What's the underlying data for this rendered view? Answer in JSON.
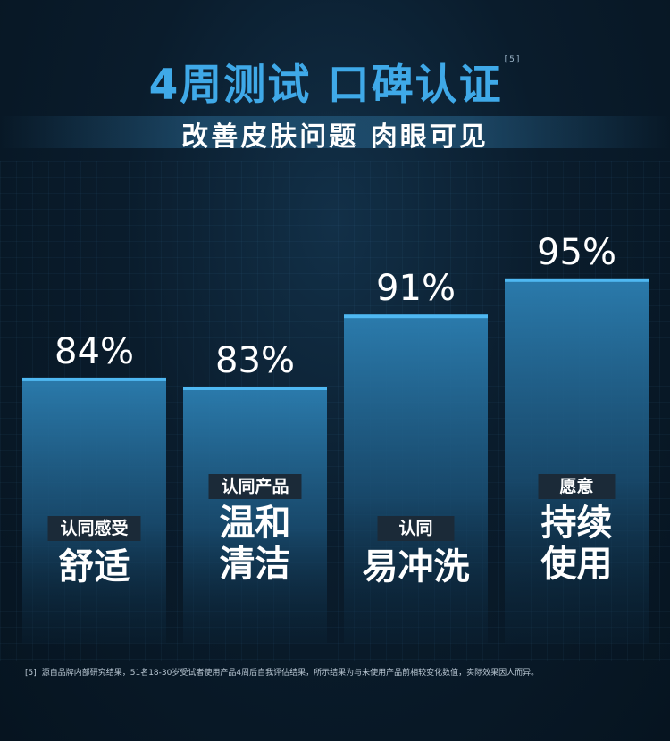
{
  "header": {
    "title": "4周测试 口碑认证",
    "title_ref": "[5]",
    "subtitle": "改善皮肤问题 肉眼可见"
  },
  "colors": {
    "accent": "#3fa9e8",
    "bar_top": "#2c7fb2",
    "bar_bottom": "#0d2a40",
    "bar_line": "#4fb8f2",
    "tag_bg": "#1b2a38"
  },
  "chart_data": {
    "type": "bar",
    "unit": "%",
    "ylim": [
      0,
      100
    ],
    "categories": [
      "舒适",
      "温和清洁",
      "易冲洗",
      "持续使用"
    ],
    "bars": [
      {
        "value": 84,
        "value_label": "84%",
        "tag": "认同感受",
        "lines": [
          "舒适"
        ]
      },
      {
        "value": 83,
        "value_label": "83%",
        "tag": "认同产品",
        "lines": [
          "温和",
          "清洁"
        ]
      },
      {
        "value": 91,
        "value_label": "91%",
        "tag": "认同",
        "lines": [
          "易冲洗"
        ]
      },
      {
        "value": 95,
        "value_label": "95%",
        "tag": "愿意",
        "lines": [
          "持续",
          "使用"
        ]
      }
    ]
  },
  "footnote": {
    "ref": "[5]",
    "text": "源自品牌内部研究结果，51名18-30岁受试者使用产品4周后自我评估结果，所示结果为与未使用产品前相较变化数值，实际效果因人而异。"
  }
}
